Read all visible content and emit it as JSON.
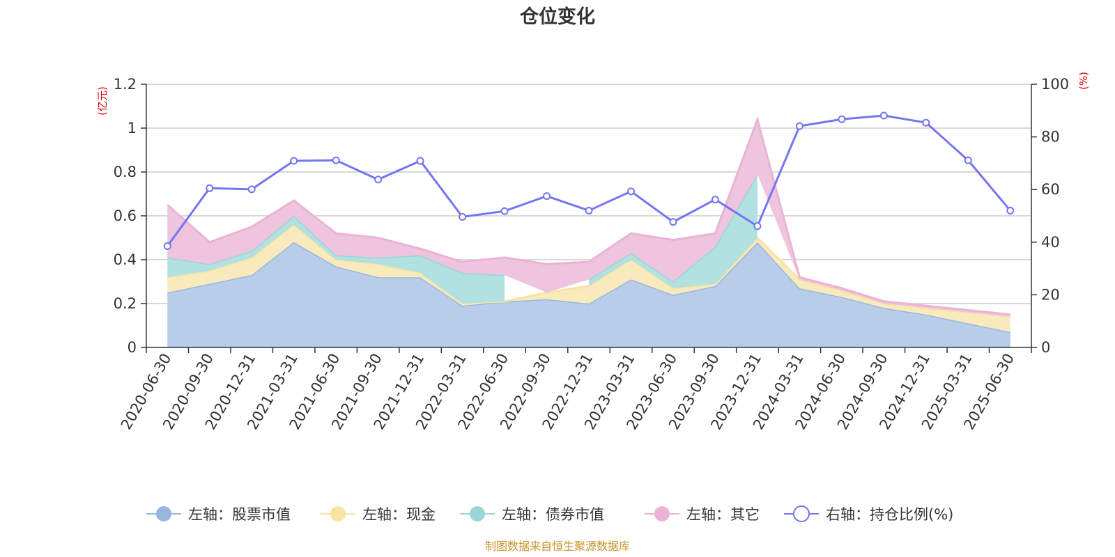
{
  "chart_data": {
    "type": "area",
    "title": "仓位变化",
    "left_unit": "(亿元)",
    "right_unit": "(%)",
    "categories": [
      "2020-06-30",
      "2020-09-30",
      "2020-12-31",
      "2021-03-31",
      "2021-06-30",
      "2021-09-30",
      "2021-12-31",
      "2022-03-31",
      "2022-06-30",
      "2022-09-30",
      "2022-12-31",
      "2023-03-31",
      "2023-06-30",
      "2023-09-30",
      "2023-12-31",
      "2024-03-31",
      "2024-06-30",
      "2024-09-30",
      "2024-12-31",
      "2025-03-31",
      "2025-06-30"
    ],
    "left_axis": {
      "min": 0,
      "max": 1.2,
      "ticks": [
        "0",
        "0.2",
        "0.4",
        "0.6",
        "0.8",
        "1",
        "1.2"
      ]
    },
    "right_axis": {
      "min": 0,
      "max": 100,
      "ticks": [
        "0",
        "20",
        "40",
        "60",
        "80",
        "100"
      ]
    },
    "stacked": true,
    "series": [
      {
        "name": "左轴：股票市值",
        "axis": "left",
        "color": "#9ab6e0",
        "fill": "#b8cdea",
        "values": [
          0.25,
          0.29,
          0.33,
          0.48,
          0.37,
          0.32,
          0.32,
          0.19,
          0.21,
          0.22,
          0.2,
          0.31,
          0.24,
          0.28,
          0.48,
          0.27,
          0.23,
          0.18,
          0.15,
          0.11,
          0.07
        ]
      },
      {
        "name": "左轴：现金",
        "axis": "left",
        "color": "#f7e3a3",
        "fill": "#f9eabb",
        "values": [
          0.07,
          0.06,
          0.08,
          0.08,
          0.03,
          0.06,
          0.02,
          0.01,
          0.0,
          0.03,
          0.08,
          0.09,
          0.03,
          0.01,
          0.02,
          0.04,
          0.03,
          0.02,
          0.03,
          0.05,
          0.07
        ]
      },
      {
        "name": "左轴：债券市值",
        "axis": "left",
        "color": "#9bd6d6",
        "fill": "#b2e1e1",
        "values": [
          0.09,
          0.03,
          0.03,
          0.04,
          0.02,
          0.03,
          0.08,
          0.14,
          0.12,
          null,
          0.03,
          0.03,
          0.03,
          0.17,
          0.29,
          null,
          null,
          null,
          null,
          null,
          null
        ]
      },
      {
        "name": "左轴：其它",
        "axis": "left",
        "color": "#eab3d5",
        "fill": "#eec4df",
        "values": [
          0.24,
          0.1,
          0.11,
          0.07,
          0.1,
          0.09,
          0.03,
          0.05,
          0.08,
          0.13,
          0.08,
          0.09,
          0.19,
          0.06,
          0.25,
          0.01,
          0.01,
          0.01,
          0.01,
          0.01,
          0.01
        ]
      },
      {
        "name": "右轴：持仓比例(%)",
        "axis": "right",
        "type": "line",
        "color": "#7475f0",
        "values": [
          38.5,
          60.5,
          60.1,
          70.9,
          71.1,
          63.8,
          70.9,
          49.6,
          51.8,
          57.5,
          52.0,
          59.3,
          47.7,
          56.2,
          46.1,
          84.1,
          86.7,
          88.1,
          85.4,
          71.1,
          52.0
        ]
      }
    ],
    "legend_position": "bottom",
    "grid": true
  },
  "source_note": "制图数据来自恒生聚源数据库"
}
